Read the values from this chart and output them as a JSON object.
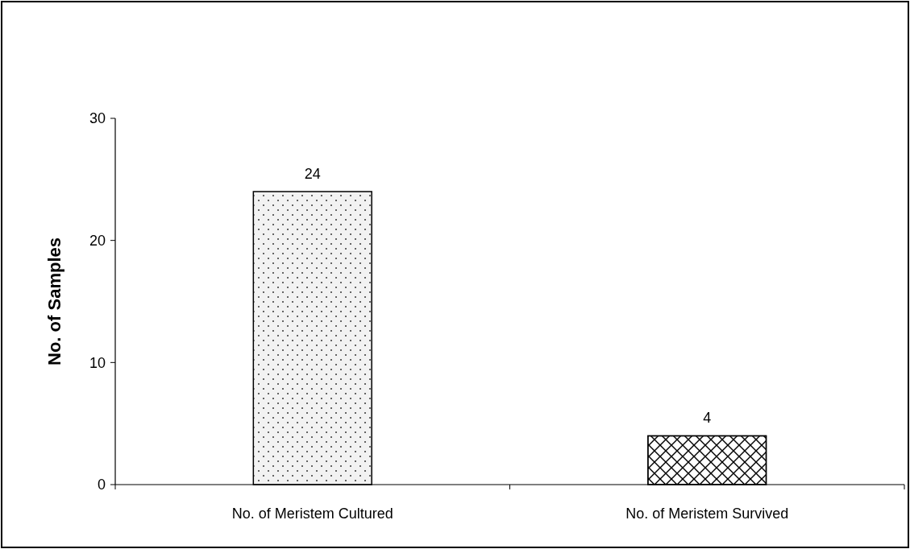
{
  "chart_data": {
    "type": "bar",
    "ylabel": "No. of Samples",
    "categories": [
      "No. of Meristem Cultured",
      "No. of Meristem Survived"
    ],
    "values": [
      24,
      4
    ],
    "colors": [
      "#f2f2f2",
      "#000000"
    ],
    "ylim": [
      0,
      30
    ],
    "yticks": [
      0,
      10,
      20,
      30
    ],
    "grid": false,
    "data_labels": true
  }
}
